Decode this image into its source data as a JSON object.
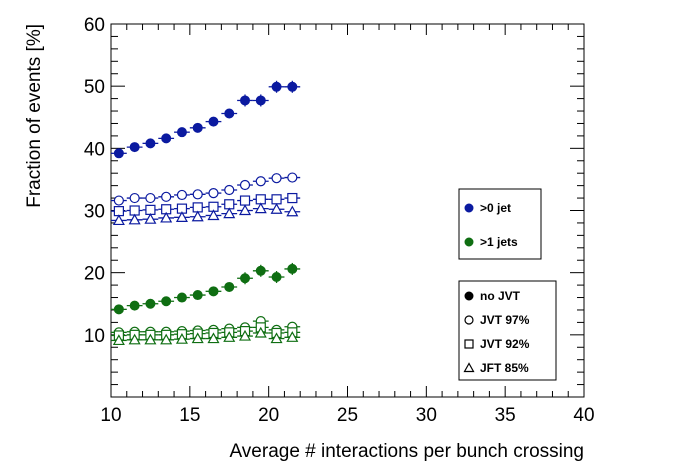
{
  "chart_data": {
    "type": "scatter",
    "title": "",
    "xlabel": "Average # interactions per bunch crossing",
    "ylabel": "Fraction of events [%]",
    "xlim": [
      10,
      40
    ],
    "ylim": [
      0,
      60
    ],
    "x_ticks": [
      "10",
      "15",
      "20",
      "25",
      "30",
      "35",
      "40"
    ],
    "y_ticks": [
      "10",
      "20",
      "30",
      "40",
      "50",
      "60"
    ],
    "grid": false,
    "x": [
      10.5,
      11.5,
      12.5,
      13.5,
      14.5,
      15.5,
      16.5,
      17.5,
      18.5,
      19.5,
      20.5,
      21.5
    ],
    "series": [
      {
        "name": ">0 jet, no JVT",
        "color": "#0b1aa0",
        "marker": "filled-circle",
        "values": [
          39.2,
          40.2,
          40.8,
          41.6,
          42.6,
          43.3,
          44.3,
          45.6,
          47.7,
          47.7,
          49.9,
          49.9
        ]
      },
      {
        "name": ">0 jet, JVT 97%",
        "color": "#0b1aa0",
        "marker": "open-circle",
        "values": [
          31.6,
          32.0,
          32.0,
          32.2,
          32.5,
          32.6,
          32.8,
          33.3,
          34.1,
          34.7,
          35.2,
          35.3
        ]
      },
      {
        "name": ">0 jet, JVT 92%",
        "color": "#0b1aa0",
        "marker": "open-square",
        "values": [
          29.9,
          30.0,
          30.1,
          30.2,
          30.3,
          30.5,
          30.6,
          31.0,
          31.6,
          31.8,
          31.8,
          32.0
        ]
      },
      {
        "name": ">0 jet, JFT 85%",
        "color": "#0b1aa0",
        "marker": "open-triangle",
        "values": [
          28.4,
          28.5,
          28.6,
          28.8,
          28.9,
          29.0,
          29.2,
          29.5,
          30.0,
          30.3,
          30.2,
          29.8
        ]
      },
      {
        "name": ">1 jets, no JVT",
        "color": "#0f6e12",
        "marker": "filled-circle",
        "values": [
          14.1,
          14.7,
          15.0,
          15.4,
          16.0,
          16.4,
          17.0,
          17.7,
          19.1,
          20.3,
          19.3,
          20.6
        ]
      },
      {
        "name": ">1 jets, JVT 97%",
        "color": "#0f6e12",
        "marker": "open-circle",
        "values": [
          10.4,
          10.5,
          10.5,
          10.5,
          10.6,
          10.7,
          10.8,
          11.0,
          11.2,
          12.2,
          10.8,
          11.3
        ]
      },
      {
        "name": ">1 jets, JVT 92%",
        "color": "#0f6e12",
        "marker": "open-square",
        "values": [
          9.9,
          10.0,
          10.0,
          10.0,
          10.1,
          10.2,
          10.3,
          10.4,
          10.6,
          11.2,
          10.3,
          10.4
        ]
      },
      {
        "name": ">1 jets, JFT 85%",
        "color": "#0f6e12",
        "marker": "open-triangle",
        "values": [
          9.1,
          9.2,
          9.2,
          9.2,
          9.3,
          9.4,
          9.4,
          9.6,
          9.8,
          10.3,
          9.4,
          9.6
        ]
      }
    ],
    "legends": [
      {
        "position": "right-middle",
        "entries": [
          {
            "label": ">0 jet",
            "color": "#0b1aa0",
            "marker": "filled-circle"
          },
          {
            "label": ">1 jets",
            "color": "#0f6e12",
            "marker": "filled-circle"
          }
        ]
      },
      {
        "position": "right-lower",
        "entries": [
          {
            "label": "no JVT",
            "color": "#000000",
            "marker": "filled-circle"
          },
          {
            "label": "JVT 97%",
            "color": "#000000",
            "marker": "open-circle"
          },
          {
            "label": "JVT 92%",
            "color": "#000000",
            "marker": "open-square"
          },
          {
            "label": "JFT 85%",
            "color": "#000000",
            "marker": "open-triangle"
          }
        ]
      }
    ]
  }
}
